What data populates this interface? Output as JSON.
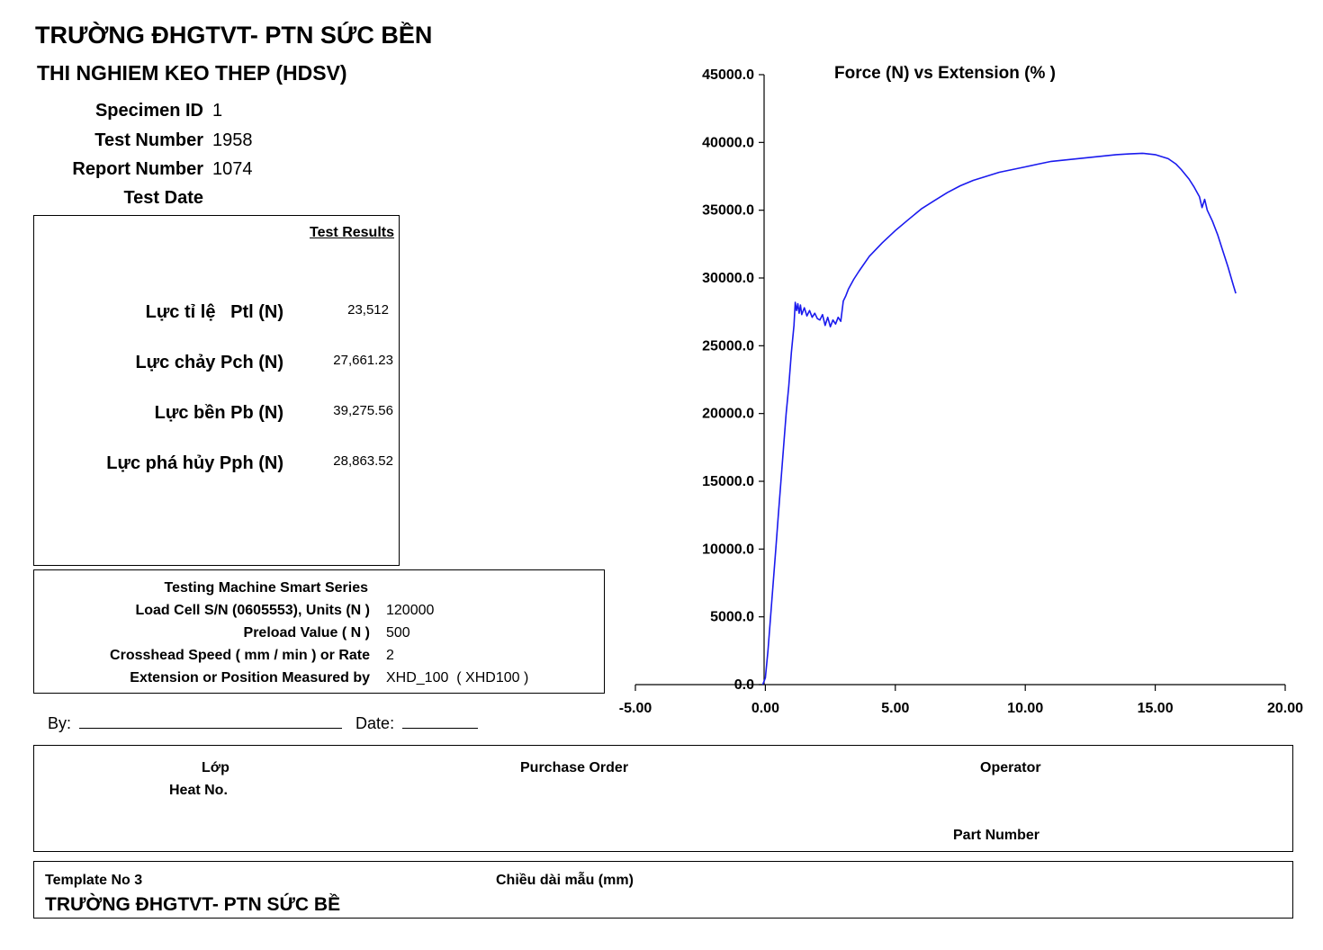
{
  "header": {
    "org_title": "TRƯỜNG ĐHGTVT- PTN SỨC BỀN",
    "test_title": "THI NGHIEM KEO THEP (HDSV)"
  },
  "specimen": {
    "specimen_id_label": "Specimen ID",
    "specimen_id_value": "1",
    "test_number_label": "Test Number",
    "test_number_value": "1958",
    "report_number_label": "Report Number",
    "report_number_value": "1074",
    "test_date_label": "Test Date",
    "test_date_value": ""
  },
  "results": {
    "heading": "Test Results",
    "rows": [
      {
        "label": "Lực tỉ lệ   Ptl (N)",
        "value": "23,512"
      },
      {
        "label": "Lực chảy Pch (N)",
        "value": "27,661.23"
      },
      {
        "label": "Lực bền Pb (N)",
        "value": "39,275.56"
      },
      {
        "label": "Lực phá hủy Pph (N)",
        "value": "28,863.52"
      }
    ]
  },
  "machine": {
    "title": "Testing Machine Smart Series",
    "rows": [
      {
        "label": "Load Cell S/N (0605553), Units (N )",
        "value": "120000"
      },
      {
        "label": "Preload Value ( N )",
        "value": "500"
      },
      {
        "label": "Crosshead Speed  ( mm / min ) or Rate",
        "value": "2"
      },
      {
        "label": "Extension or Position Measured by",
        "value": "XHD_100  ( XHD100 )"
      }
    ]
  },
  "signature": {
    "by_label": "By:",
    "date_label": "Date:"
  },
  "info_box": {
    "class_label": "Lớp",
    "heat_no_label": "Heat No.",
    "purchase_order_label": "Purchase Order",
    "operator_label": "Operator",
    "part_number_label": "Part Number"
  },
  "footer": {
    "template_label": "Template No 3",
    "specimen_length_label": "Chiều dài mẫu (mm)",
    "org_title": "TRƯỜNG ĐHGTVT- PTN SỨC BỀ"
  },
  "chart_data": {
    "type": "line",
    "title": "Force (N) vs Extension (% )",
    "xlabel": "",
    "ylabel": "",
    "xlim": [
      -5,
      20
    ],
    "ylim": [
      0,
      45000
    ],
    "x_ticks": [
      -5,
      0,
      5,
      10,
      15,
      20
    ],
    "x_tick_labels": [
      "-5.00",
      "0.00",
      "5.00",
      "10.00",
      "15.00",
      "20.00"
    ],
    "y_ticks": [
      0,
      5000,
      10000,
      15000,
      20000,
      25000,
      30000,
      35000,
      40000,
      45000
    ],
    "y_tick_labels": [
      "0.0",
      "5000.0",
      "10000.0",
      "15000.0",
      "20000.0",
      "25000.0",
      "30000.0",
      "35000.0",
      "40000.0",
      "45000.0"
    ],
    "grid": false,
    "series_color": "#1a1aee",
    "series": [
      {
        "x": [
          -0.1,
          0.0,
          0.1,
          0.2,
          0.3,
          0.4,
          0.5,
          0.6,
          0.7,
          0.8,
          0.9,
          1.0,
          1.1,
          1.15,
          1.2,
          1.25,
          1.3,
          1.35,
          1.4,
          1.5,
          1.6,
          1.7,
          1.8,
          1.9,
          2.0,
          2.1,
          2.2,
          2.3,
          2.4,
          2.5,
          2.6,
          2.7,
          2.8,
          2.9,
          3.0,
          3.1,
          3.2,
          3.4,
          3.6,
          4.0,
          4.5,
          5.0,
          5.5,
          6.0,
          6.5,
          7.0,
          7.5,
          8.0,
          8.5,
          9.0,
          9.5,
          10.0,
          10.5,
          11.0,
          11.5,
          12.0,
          12.5,
          13.0,
          13.5,
          14.0,
          14.5,
          15.0,
          15.5,
          15.8,
          16.0,
          16.3,
          16.5,
          16.7,
          16.8,
          16.9,
          17.0,
          17.2,
          17.4,
          17.6,
          17.8,
          18.0,
          18.1
        ],
        "values": [
          0,
          500,
          2500,
          5000,
          7500,
          10000,
          12500,
          15000,
          17500,
          20000,
          22000,
          24500,
          26500,
          28200,
          27600,
          28100,
          27400,
          28000,
          27300,
          27800,
          27200,
          27600,
          27100,
          27400,
          27000,
          26900,
          27300,
          26500,
          27100,
          26400,
          26900,
          26600,
          27100,
          26800,
          28300,
          28700,
          29200,
          29900,
          30500,
          31600,
          32600,
          33500,
          34300,
          35100,
          35700,
          36300,
          36800,
          37200,
          37500,
          37800,
          38000,
          38200,
          38400,
          38600,
          38700,
          38800,
          38900,
          39000,
          39100,
          39150,
          39200,
          39100,
          38800,
          38400,
          38000,
          37300,
          36700,
          36000,
          35200,
          35800,
          35000,
          34200,
          33200,
          32000,
          30800,
          29500,
          28864
        ]
      }
    ]
  }
}
